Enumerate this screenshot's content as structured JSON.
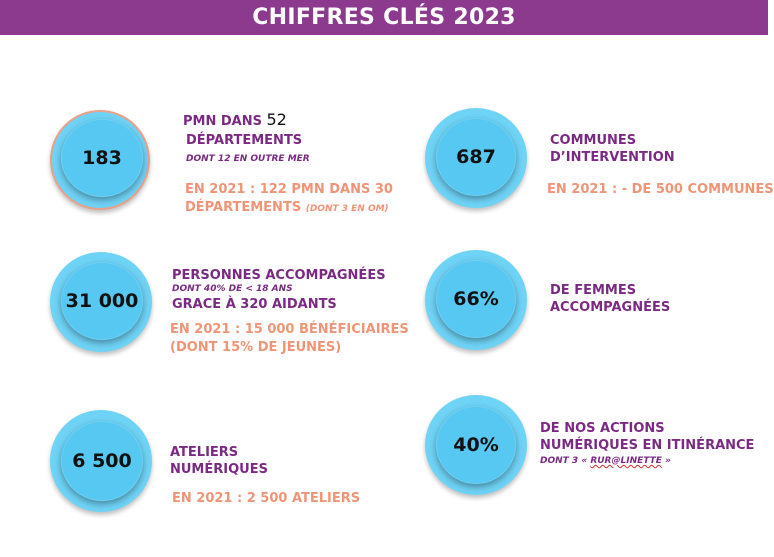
{
  "header": {
    "title": "CHIFFRES CLÉS 2023"
  },
  "stats": {
    "pmn": {
      "value": "183",
      "line1": "PMN DANS ",
      "line1_num": "52",
      "line2": "DÉPARTEMENTS",
      "sub": "DONT 12 EN OUTRE MER",
      "note1": "EN 2021 : 122 PMN DANS 30",
      "note2": "DÉPARTEMENTS ",
      "note2_small": "(DONT 3 EN OM)"
    },
    "communes": {
      "value": "687",
      "line1": "COMMUNES",
      "line2": "D’INTERVENTION",
      "note1": "EN 2021 : - DE 500 COMMUNES"
    },
    "personnes": {
      "value": "31 000",
      "line1": "PERSONNES ACCOMPAGNÉES",
      "sub": "DONT 40% DE < 18 ANS",
      "line2": "GRACE À 320 AIDANTS",
      "note1": "EN 2021 : 15 000 BÉNÉFICIAIRES",
      "note2": "(DONT 15% DE JEUNES)"
    },
    "femmes": {
      "value": "66%",
      "line1": "DE FEMMES",
      "line2": "ACCOMPAGNÉES"
    },
    "ateliers": {
      "value": "6 500",
      "line1": "ATELIERS",
      "line2": "NUMÉRIQUES",
      "note1": "EN 2021 : 2 500 ATELIERS"
    },
    "actions": {
      "value": "40%",
      "line1": "DE NOS ACTIONS",
      "line2": "NUMÉRIQUES EN ITINÉRANCE",
      "sub_prefix": "DONT 3 « ",
      "sub_brand": "RUR@LINETTE",
      "sub_suffix": " »"
    }
  },
  "colors": {
    "header": "#8b3a8e",
    "circle": "#56c8f2",
    "purple_text": "#7a2a82",
    "salmon_text": "#ef9577"
  }
}
